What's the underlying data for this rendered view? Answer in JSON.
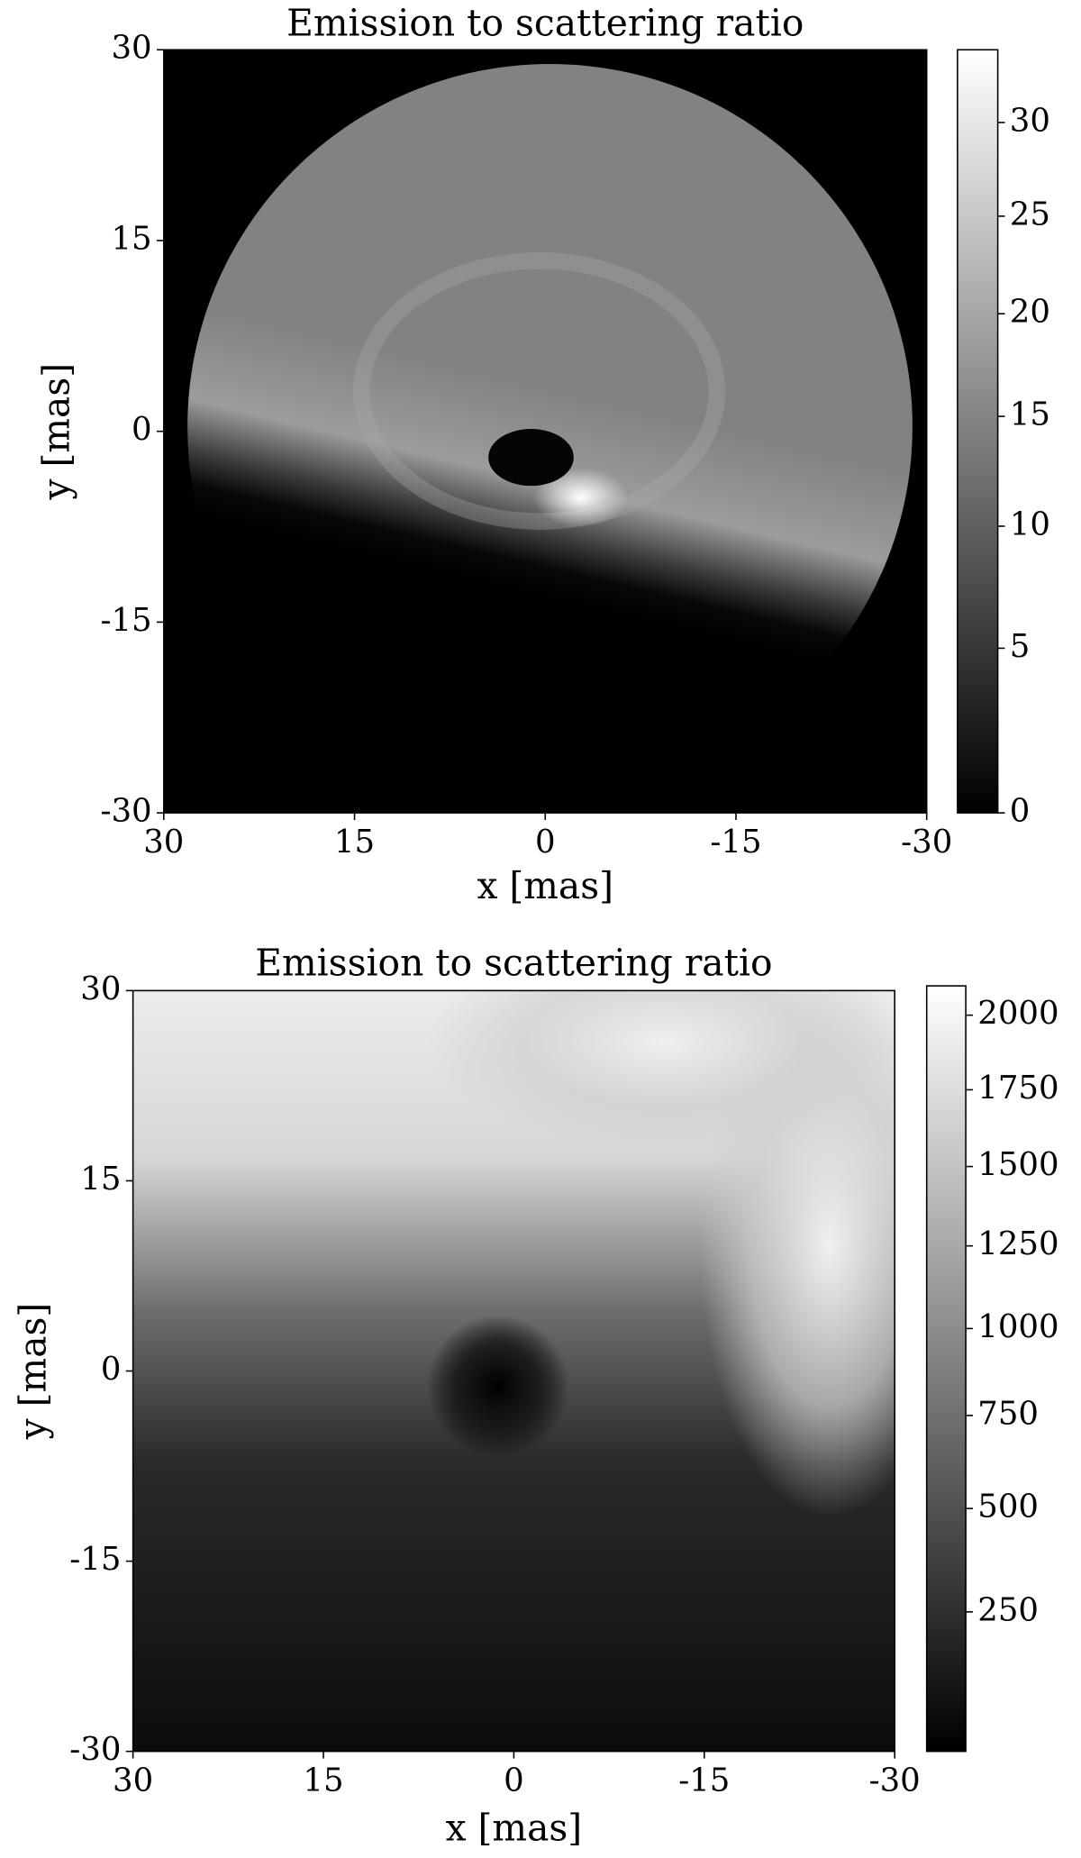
{
  "chart_data": [
    {
      "type": "heatmap",
      "title": "Emission to scattering ratio",
      "xlabel": "x [mas]",
      "ylabel": "y [mas]",
      "xlim": [
        30,
        -30
      ],
      "ylim": [
        -30,
        30
      ],
      "xticks": [
        30,
        15,
        0,
        -15,
        -30
      ],
      "yticks": [
        -30,
        -15,
        0,
        15,
        30
      ],
      "colormap": "gray",
      "colorbar_scale": "power",
      "colorbar_gamma": 0.8,
      "clim": [
        0,
        34
      ],
      "colorbar_ticks": [
        0,
        5,
        10,
        15,
        20,
        25,
        30
      ]
    },
    {
      "type": "heatmap",
      "title": "Emission to scattering ratio",
      "xlabel": "x [mas]",
      "ylabel": "y [mas]",
      "xlim": [
        30,
        -30
      ],
      "ylim": [
        -30,
        30
      ],
      "xticks": [
        30,
        15,
        0,
        -15,
        -30
      ],
      "yticks": [
        -30,
        -15,
        0,
        15,
        30
      ],
      "colormap": "gray",
      "colorbar_scale": "power",
      "colorbar_gamma": 0.8,
      "clim": [
        0,
        2100
      ],
      "colorbar_ticks": [
        250,
        500,
        750,
        1000,
        1250,
        1500,
        1750,
        2000
      ]
    }
  ]
}
